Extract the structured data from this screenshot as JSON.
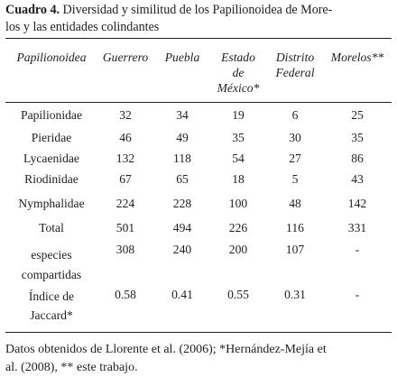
{
  "caption": {
    "label": "Cuadro 4.",
    "line1": "Diversidad y similitud de los Papilionoidea de More-",
    "line2": "los y las entidades colindantes"
  },
  "headers": [
    [
      "Papilionoidea"
    ],
    [
      "Guerrero"
    ],
    [
      "Puebla"
    ],
    [
      "Estado",
      "de",
      "México*"
    ],
    [
      "Distrito",
      "Federal"
    ],
    [
      "Morelos**"
    ]
  ],
  "rows": [
    {
      "label": [
        "Papilionidae"
      ],
      "values": [
        "32",
        "34",
        "19",
        "6",
        "25"
      ]
    },
    {
      "label": [
        "Pieridae"
      ],
      "values": [
        "46",
        "49",
        "35",
        "30",
        "35"
      ]
    },
    {
      "label": [
        "Lycaenidae"
      ],
      "values": [
        "132",
        "118",
        "54",
        "27",
        "86"
      ]
    },
    {
      "label": [
        "Riodinidae"
      ],
      "values": [
        "67",
        "65",
        "18",
        "5",
        "43"
      ]
    },
    {
      "label": [
        "Nymphalidae"
      ],
      "values": [
        "224",
        "228",
        "100",
        "48",
        "142"
      ]
    },
    {
      "label": [
        "Total"
      ],
      "values": [
        "501",
        "494",
        "226",
        "116",
        "331"
      ]
    },
    {
      "label": [
        "especies",
        "compartidas"
      ],
      "values": [
        "308",
        "240",
        "200",
        "107",
        "-"
      ]
    },
    {
      "label": [
        "Índice de",
        "Jaccard*"
      ],
      "values": [
        "0.58",
        "0.41",
        "0.55",
        "0.31",
        "-"
      ]
    }
  ],
  "footnote": {
    "line1": "Datos obtenidos de Llorente et al. (2006); *Hernández-Mejía et",
    "line2": "al. (2008), ** este trabajo."
  }
}
